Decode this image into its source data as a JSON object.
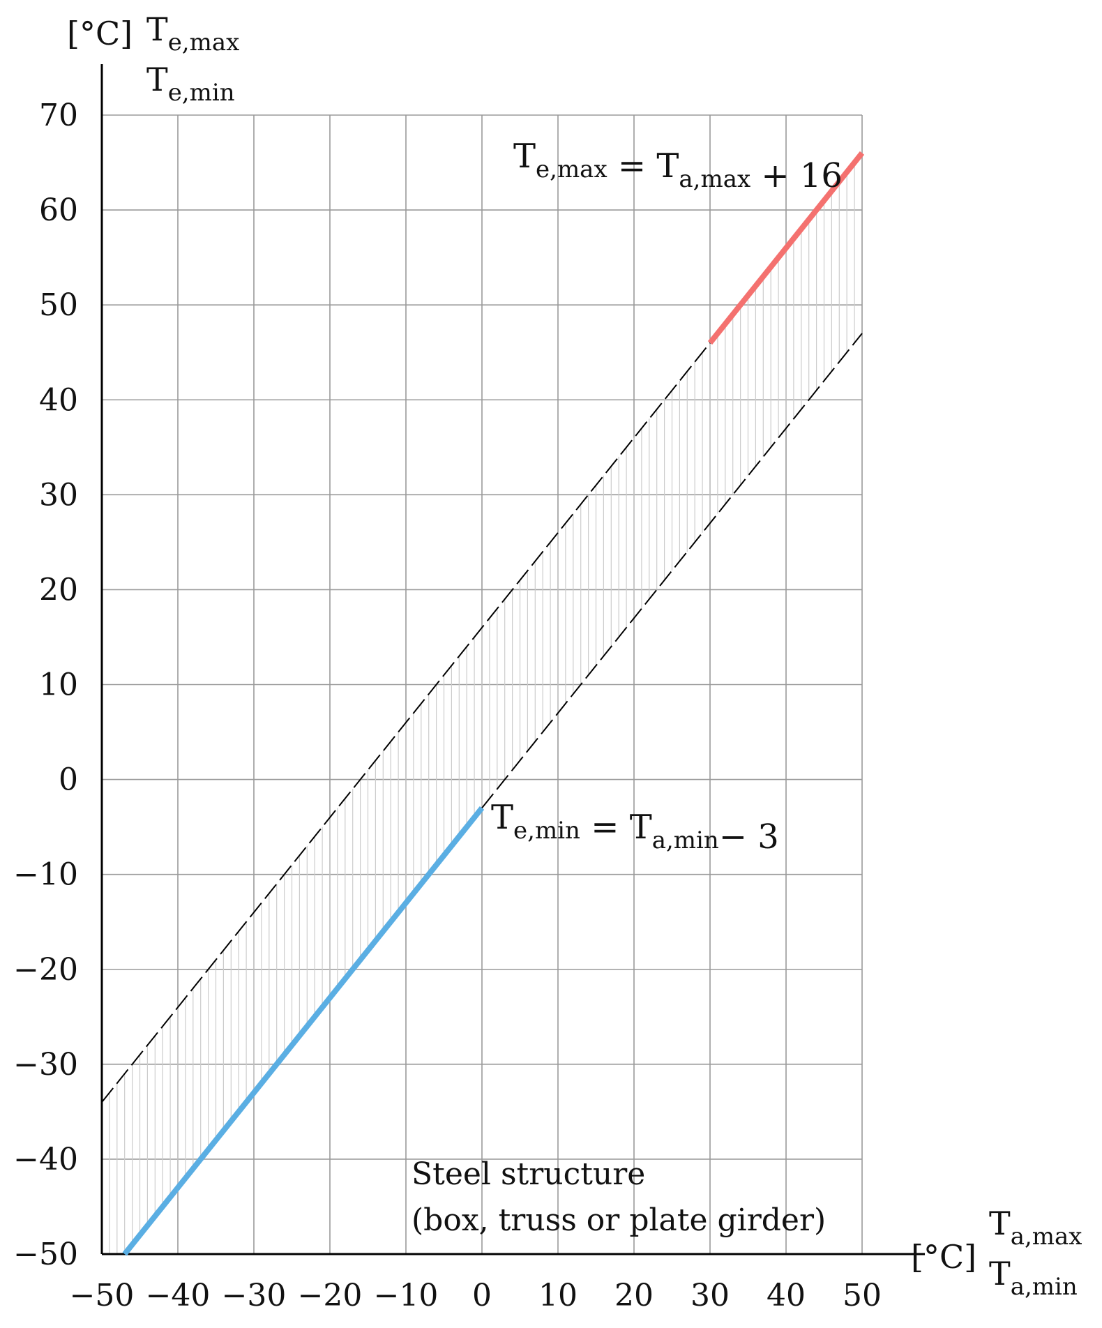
{
  "chart_data": {
    "type": "line",
    "xlim": [
      -50,
      50
    ],
    "ylim": [
      -50,
      70
    ],
    "x_ticks": [
      -50,
      -40,
      -30,
      -20,
      -10,
      0,
      10,
      20,
      30,
      40,
      50
    ],
    "y_ticks": [
      -50,
      -40,
      -30,
      -20,
      -10,
      0,
      10,
      20,
      30,
      40,
      50,
      60,
      70
    ],
    "x_tick_labels": [
      "−50",
      "−40",
      "−30",
      "−20",
      "−10",
      "0",
      "10",
      "20",
      "30",
      "40",
      "50"
    ],
    "y_tick_labels": [
      "−50",
      "−40",
      "−30",
      "−20",
      "−10",
      "0",
      "10",
      "20",
      "30",
      "40",
      "50",
      "60",
      "70"
    ],
    "grid": true,
    "y_axis_label": {
      "unit": "[°C]",
      "line1": {
        "base": "T",
        "sub": "e,max"
      },
      "line2": {
        "base": "T",
        "sub": "e,min"
      }
    },
    "x_axis_label": {
      "unit": "[°C]",
      "line1": {
        "base": "T",
        "sub": "a,max"
      },
      "line2": {
        "base": "T",
        "sub": "a,min"
      }
    },
    "series": [
      {
        "id": "max_dashed",
        "style": "dashed",
        "color": "#000000",
        "x": [
          -50,
          30
        ],
        "y": [
          -34,
          46
        ]
      },
      {
        "id": "max_solid",
        "style": "solid",
        "color": "#f4716f",
        "x": [
          30,
          50
        ],
        "y": [
          46,
          66
        ]
      },
      {
        "id": "min_dashed",
        "style": "dashed",
        "color": "#000000",
        "x": [
          0,
          50
        ],
        "y": [
          -3,
          47
        ]
      },
      {
        "id": "min_solid",
        "style": "solid",
        "color": "#5aaee3",
        "x": [
          -47,
          0
        ],
        "y": [
          -50,
          -3
        ]
      }
    ],
    "band": {
      "upper_offset": 16,
      "lower_offset": -3,
      "x_from": -50,
      "x_to": 50,
      "hatch_color": "#cccccc"
    },
    "annotations": {
      "max_equation": {
        "parts": [
          {
            "base": "T",
            "sub": "e,max"
          },
          {
            "text": " = "
          },
          {
            "base": "T",
            "sub": "a,max"
          },
          {
            "text": " + 16"
          }
        ]
      },
      "min_equation": {
        "parts": [
          {
            "base": "T",
            "sub": "e,min"
          },
          {
            "text": " = "
          },
          {
            "base": "T",
            "sub": "a,min"
          },
          {
            "text": "− 3"
          }
        ]
      },
      "structure_line1": "Steel structure",
      "structure_line2": "(box, truss or plate girder)"
    }
  }
}
